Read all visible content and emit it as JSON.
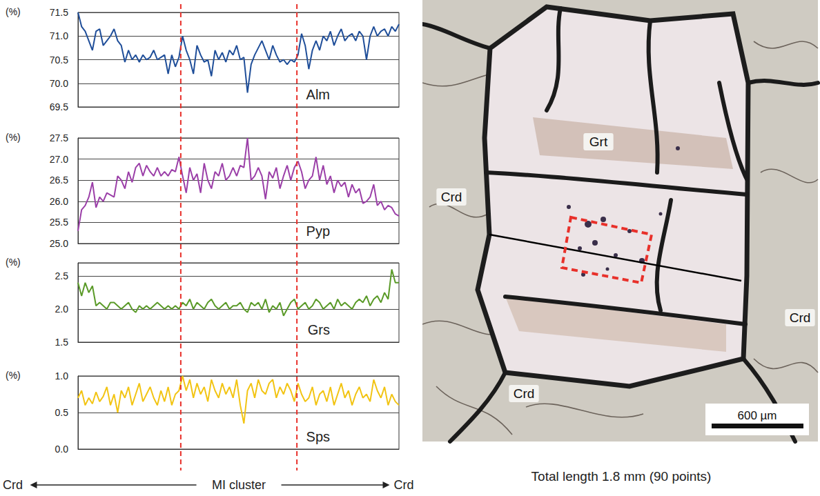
{
  "chart_data": [
    {
      "type": "line",
      "title": "Alm",
      "ylabel": "(%)",
      "color": "#1f4e99",
      "grid": true,
      "tick_labels": "y",
      "x": [
        1,
        2,
        3,
        4,
        5,
        6,
        7,
        8,
        9,
        10,
        11,
        12,
        13,
        14,
        15,
        16,
        17,
        18,
        19,
        20,
        21,
        22,
        23,
        24,
        25,
        26,
        27,
        28,
        29,
        30,
        31,
        32,
        33,
        34,
        35,
        36,
        37,
        38,
        39,
        40,
        41,
        42,
        43,
        44,
        45,
        46,
        47,
        48,
        49,
        50,
        51,
        52,
        53,
        54,
        55,
        56,
        57,
        58,
        59,
        60,
        61,
        62,
        63,
        64,
        65,
        66,
        67,
        68,
        69,
        70,
        71,
        72,
        73,
        74,
        75,
        76,
        77,
        78,
        79,
        80,
        81,
        82,
        83,
        84,
        85,
        86,
        87,
        88,
        89,
        90
      ],
      "xlim": [
        1,
        90
      ],
      "ylim": [
        69.5,
        71.5
      ],
      "yticks": [
        69.5,
        {
          "value": 70,
          "label": "70.0"
        },
        70.5,
        {
          "value": 71,
          "label": "71.0"
        },
        71.5
      ],
      "values": [
        71.5,
        71.2,
        71.1,
        70.9,
        70.7,
        71.1,
        71.15,
        70.8,
        70.9,
        71.0,
        71.15,
        70.9,
        70.8,
        70.45,
        70.7,
        70.5,
        70.6,
        70.45,
        70.6,
        70.5,
        70.55,
        70.7,
        70.5,
        70.55,
        70.6,
        70.2,
        70.6,
        70.35,
        70.55,
        71.0,
        70.7,
        70.5,
        70.2,
        70.8,
        70.6,
        70.45,
        70.5,
        70.15,
        70.7,
        70.5,
        70.65,
        70.45,
        70.7,
        70.6,
        70.8,
        70.5,
        70.55,
        69.8,
        70.4,
        70.6,
        70.75,
        70.9,
        70.7,
        70.5,
        70.8,
        70.6,
        70.45,
        70.5,
        70.4,
        70.5,
        70.45,
        70.6,
        71.05,
        70.8,
        70.3,
        70.7,
        70.9,
        70.7,
        71.0,
        70.9,
        71.1,
        70.8,
        71.0,
        71.15,
        70.9,
        71.0,
        71.05,
        70.9,
        71.1,
        71.0,
        70.5,
        71.0,
        71.2,
        71.0,
        71.1,
        71.15,
        71.0,
        71.2,
        71.1,
        71.25
      ]
    },
    {
      "type": "line",
      "title": "Pyp",
      "ylabel": "(%)",
      "color": "#9b3fa8",
      "grid": true,
      "tick_labels": "y",
      "x": [
        1,
        2,
        3,
        4,
        5,
        6,
        7,
        8,
        9,
        10,
        11,
        12,
        13,
        14,
        15,
        16,
        17,
        18,
        19,
        20,
        21,
        22,
        23,
        24,
        25,
        26,
        27,
        28,
        29,
        30,
        31,
        32,
        33,
        34,
        35,
        36,
        37,
        38,
        39,
        40,
        41,
        42,
        43,
        44,
        45,
        46,
        47,
        48,
        49,
        50,
        51,
        52,
        53,
        54,
        55,
        56,
        57,
        58,
        59,
        60,
        61,
        62,
        63,
        64,
        65,
        66,
        67,
        68,
        69,
        70,
        71,
        72,
        73,
        74,
        75,
        76,
        77,
        78,
        79,
        80,
        81,
        82,
        83,
        84,
        85,
        86,
        87,
        88,
        89,
        90
      ],
      "xlim": [
        1,
        90
      ],
      "ylim": [
        25,
        27.5
      ],
      "yticks": [
        {
          "value": 25,
          "label": "25.0"
        },
        25.5,
        {
          "value": 26,
          "label": "26.0"
        },
        26.5,
        {
          "value": 27,
          "label": "27.0"
        },
        27.5
      ],
      "values": [
        25.3,
        25.8,
        25.9,
        26.1,
        26.45,
        25.85,
        26.1,
        26.0,
        26.2,
        26.15,
        26.1,
        26.6,
        26.5,
        26.3,
        26.7,
        26.45,
        26.8,
        26.9,
        26.6,
        26.85,
        26.7,
        26.6,
        26.8,
        26.6,
        26.7,
        26.6,
        26.75,
        26.7,
        27.05,
        26.6,
        26.2,
        26.8,
        26.5,
        26.65,
        26.2,
        26.9,
        26.5,
        26.3,
        26.7,
        26.6,
        26.9,
        26.5,
        26.6,
        26.8,
        26.6,
        26.85,
        26.8,
        27.5,
        26.5,
        26.6,
        26.8,
        26.6,
        26.05,
        26.7,
        26.55,
        26.8,
        26.3,
        26.6,
        26.85,
        26.5,
        26.8,
        26.95,
        26.7,
        26.3,
        26.5,
        26.6,
        27.05,
        26.5,
        26.85,
        26.4,
        26.6,
        26.2,
        26.5,
        26.35,
        26.45,
        26.1,
        26.4,
        26.2,
        26.3,
        25.95,
        26.0,
        26.1,
        26.4,
        25.9,
        26.0,
        25.8,
        25.9,
        25.85,
        25.7,
        25.65
      ]
    },
    {
      "type": "line",
      "title": "Grs",
      "ylabel": "(%)",
      "color": "#5a9a28",
      "grid": true,
      "tick_labels": "y",
      "x": [
        1,
        2,
        3,
        4,
        5,
        6,
        7,
        8,
        9,
        10,
        11,
        12,
        13,
        14,
        15,
        16,
        17,
        18,
        19,
        20,
        21,
        22,
        23,
        24,
        25,
        26,
        27,
        28,
        29,
        30,
        31,
        32,
        33,
        34,
        35,
        36,
        37,
        38,
        39,
        40,
        41,
        42,
        43,
        44,
        45,
        46,
        47,
        48,
        49,
        50,
        51,
        52,
        53,
        54,
        55,
        56,
        57,
        58,
        59,
        60,
        61,
        62,
        63,
        64,
        65,
        66,
        67,
        68,
        69,
        70,
        71,
        72,
        73,
        74,
        75,
        76,
        77,
        78,
        79,
        80,
        81,
        82,
        83,
        84,
        85,
        86,
        87,
        88,
        89,
        90
      ],
      "xlim": [
        1,
        90
      ],
      "ylim": [
        1.5,
        2.7
      ],
      "yticks": [
        1.5,
        {
          "value": 2,
          "label": "2.0"
        },
        2.5
      ],
      "values": [
        2.4,
        2.2,
        2.4,
        2.25,
        2.35,
        2.05,
        2.1,
        2.05,
        2.0,
        2.1,
        2.1,
        2.05,
        2.0,
        2.05,
        2.1,
        2.0,
        1.95,
        2.05,
        2.0,
        2.05,
        2.0,
        2.05,
        2.1,
        2.05,
        2.0,
        2.05,
        2.0,
        2.05,
        2.0,
        2.1,
        2.05,
        2.15,
        2.0,
        2.1,
        2.05,
        2.0,
        2.1,
        2.15,
        2.05,
        2.0,
        2.05,
        2.1,
        2.0,
        2.05,
        2.05,
        2.1,
        2.0,
        1.95,
        2.1,
        2.05,
        2.1,
        2.0,
        2.15,
        1.95,
        2.05,
        2.0,
        2.1,
        1.9,
        2.0,
        2.1,
        2.15,
        2.0,
        2.05,
        2.1,
        2.0,
        2.05,
        2.15,
        2.1,
        2.0,
        2.05,
        2.1,
        2.0,
        2.15,
        2.05,
        2.1,
        2.05,
        2.0,
        2.1,
        2.15,
        2.1,
        2.2,
        2.05,
        2.15,
        2.2,
        2.1,
        2.25,
        2.15,
        2.6,
        2.4,
        2.4
      ]
    },
    {
      "type": "line",
      "title": "Sps",
      "ylabel": "(%)",
      "color": "#f2c413",
      "grid": true,
      "tick_labels": "y",
      "x": [
        1,
        2,
        3,
        4,
        5,
        6,
        7,
        8,
        9,
        10,
        11,
        12,
        13,
        14,
        15,
        16,
        17,
        18,
        19,
        20,
        21,
        22,
        23,
        24,
        25,
        26,
        27,
        28,
        29,
        30,
        31,
        32,
        33,
        34,
        35,
        36,
        37,
        38,
        39,
        40,
        41,
        42,
        43,
        44,
        45,
        46,
        47,
        48,
        49,
        50,
        51,
        52,
        53,
        54,
        55,
        56,
        57,
        58,
        59,
        60,
        61,
        62,
        63,
        64,
        65,
        66,
        67,
        68,
        69,
        70,
        71,
        72,
        73,
        74,
        75,
        76,
        77,
        78,
        79,
        80,
        81,
        82,
        83,
        84,
        85,
        86,
        87,
        88,
        89,
        90
      ],
      "xlim": [
        1,
        90
      ],
      "ylim": [
        0,
        1
      ],
      "yticks": [
        {
          "value": 0,
          "label": "0.0"
        },
        0.5,
        {
          "value": 1,
          "label": "1.0"
        }
      ],
      "values": [
        0.7,
        0.8,
        0.6,
        0.7,
        0.62,
        0.78,
        0.65,
        0.72,
        0.85,
        0.6,
        0.75,
        0.5,
        0.8,
        0.7,
        0.85,
        0.6,
        0.75,
        0.9,
        0.65,
        0.75,
        0.85,
        0.7,
        0.6,
        0.8,
        0.65,
        0.85,
        0.6,
        0.75,
        0.8,
        1.0,
        0.8,
        0.95,
        0.7,
        0.9,
        0.75,
        0.85,
        0.65,
        0.95,
        0.8,
        0.7,
        0.9,
        0.75,
        0.85,
        0.7,
        0.95,
        0.6,
        0.35,
        0.8,
        0.9,
        0.7,
        0.95,
        0.8,
        0.75,
        0.9,
        0.95,
        0.7,
        0.85,
        0.75,
        0.9,
        0.8,
        0.65,
        0.9,
        0.75,
        0.65,
        0.7,
        0.85,
        0.6,
        0.75,
        0.8,
        0.65,
        0.85,
        0.6,
        0.75,
        0.9,
        0.7,
        0.8,
        0.6,
        0.75,
        0.85,
        0.7,
        0.75,
        0.65,
        0.95,
        0.8,
        0.7,
        0.85,
        0.6,
        0.75,
        0.65,
        0.6
      ]
    }
  ],
  "mi_cluster": [
    29.5,
    61.7
  ],
  "x_annotation": {
    "left": "Crd",
    "center": "MI cluster",
    "right": "Crd"
  },
  "image_panel": {
    "labels": [
      "Grt",
      "Crd",
      "Crd",
      "Crd"
    ],
    "scale_bar": "600 µm",
    "caption": "Total length 1.8 mm (90 points)"
  }
}
